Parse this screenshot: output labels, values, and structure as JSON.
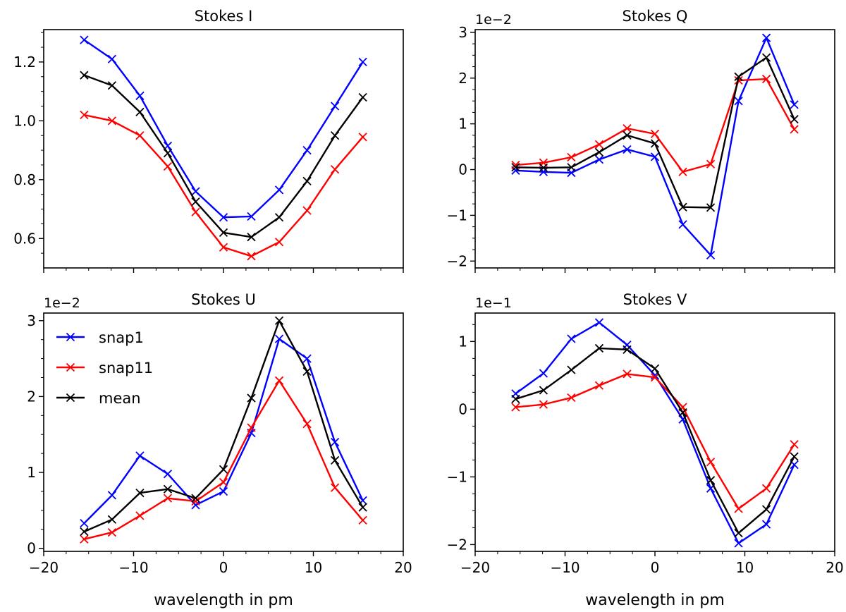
{
  "xlabel": "wavelength in pm",
  "colors": {
    "snap1": "#0000ff",
    "snap11": "#ff0000",
    "mean": "#000000"
  },
  "chart_data": [
    {
      "type": "line",
      "title": "Stokes I",
      "offset_label": "",
      "xlabel": "",
      "xlim": [
        -20,
        20
      ],
      "ylim": [
        0.5,
        1.31
      ],
      "xticks": [
        -20,
        -10,
        0,
        10,
        20
      ],
      "show_xticklabels": false,
      "yticks": [
        0.6,
        0.8,
        1.0,
        1.2
      ],
      "ytick_labels": [
        "0.6",
        "0.8",
        "1.0",
        "1.2"
      ],
      "grid": false,
      "x": [
        -15.5,
        -12.4,
        -9.3,
        -6.2,
        -3.1,
        0,
        3.1,
        6.2,
        9.3,
        12.4,
        15.5
      ],
      "series": [
        {
          "name": "snap1",
          "color": "#0000ff",
          "values": [
            1.275,
            1.21,
            1.085,
            0.915,
            0.76,
            0.672,
            0.675,
            0.765,
            0.9,
            1.05,
            1.2
          ]
        },
        {
          "name": "snap11",
          "color": "#ff0000",
          "values": [
            1.02,
            1.0,
            0.95,
            0.845,
            0.69,
            0.57,
            0.54,
            0.588,
            0.695,
            0.835,
            0.945
          ]
        },
        {
          "name": "mean",
          "color": "#000000",
          "values": [
            1.155,
            1.12,
            1.03,
            0.89,
            0.725,
            0.62,
            0.605,
            0.672,
            0.795,
            0.95,
            1.08
          ]
        }
      ]
    },
    {
      "type": "line",
      "title": "Stokes Q",
      "offset_label": "1e−2",
      "xlabel": "",
      "xlim": [
        -20,
        20
      ],
      "ylim": [
        -2.15,
        3.06
      ],
      "xticks": [
        -20,
        -10,
        0,
        10,
        20
      ],
      "show_xticklabels": false,
      "yticks": [
        -2,
        -1,
        0,
        1,
        2,
        3
      ],
      "ytick_labels": [
        "−2",
        "−1",
        "0",
        "1",
        "2",
        "3"
      ],
      "grid": false,
      "x": [
        -15.5,
        -12.4,
        -9.3,
        -6.2,
        -3.1,
        0,
        3.1,
        6.2,
        9.3,
        12.4,
        15.5
      ],
      "series": [
        {
          "name": "snap1",
          "color": "#0000ff",
          "values": [
            -0.02,
            -0.05,
            -0.07,
            0.22,
            0.44,
            0.28,
            -1.2,
            -1.87,
            1.5,
            2.88,
            1.42
          ]
        },
        {
          "name": "snap11",
          "color": "#ff0000",
          "values": [
            0.1,
            0.15,
            0.27,
            0.55,
            0.9,
            0.78,
            -0.05,
            0.12,
            1.95,
            1.98,
            0.88
          ]
        },
        {
          "name": "mean",
          "color": "#000000",
          "values": [
            0.05,
            0.04,
            0.05,
            0.38,
            0.75,
            0.57,
            -0.82,
            -0.83,
            2.03,
            2.45,
            1.1
          ]
        }
      ]
    },
    {
      "type": "line",
      "title": "Stokes U",
      "offset_label": "1e−2",
      "xlabel": "wavelength in pm",
      "xlim": [
        -20,
        20
      ],
      "ylim": [
        -0.04,
        3.1
      ],
      "xticks": [
        -20,
        -10,
        0,
        10,
        20
      ],
      "show_xticklabels": true,
      "xtick_labels": [
        "−20",
        "−10",
        "0",
        "10",
        "20"
      ],
      "yticks": [
        0,
        1,
        2,
        3
      ],
      "ytick_labels": [
        "0",
        "1",
        "2",
        "3"
      ],
      "grid": false,
      "legend": {
        "placement": "upper-left",
        "entries": [
          "snap1",
          "snap11",
          "mean"
        ]
      },
      "x": [
        -15.5,
        -12.4,
        -9.3,
        -6.2,
        -3.1,
        0,
        3.1,
        6.2,
        9.3,
        12.4,
        15.5
      ],
      "series": [
        {
          "name": "snap1",
          "color": "#0000ff",
          "values": [
            0.33,
            0.7,
            1.22,
            0.98,
            0.57,
            0.75,
            1.52,
            2.76,
            2.5,
            1.4,
            0.63
          ]
        },
        {
          "name": "snap11",
          "color": "#ff0000",
          "values": [
            0.12,
            0.21,
            0.43,
            0.66,
            0.62,
            0.87,
            1.59,
            2.21,
            1.64,
            0.8,
            0.37
          ]
        },
        {
          "name": "mean",
          "color": "#000000",
          "values": [
            0.22,
            0.38,
            0.73,
            0.78,
            0.66,
            1.04,
            1.98,
            3.0,
            2.33,
            1.16,
            0.54
          ]
        }
      ]
    },
    {
      "type": "line",
      "title": "Stokes V",
      "offset_label": "1e−1",
      "xlabel": "wavelength in pm",
      "xlim": [
        -20,
        20
      ],
      "ylim": [
        -2.1,
        1.42
      ],
      "xticks": [
        -20,
        -10,
        0,
        10,
        20
      ],
      "show_xticklabels": true,
      "xtick_labels": [
        "−20",
        "−10",
        "0",
        "10",
        "20"
      ],
      "yticks": [
        -2,
        -1,
        0,
        1
      ],
      "ytick_labels": [
        "−2",
        "−1",
        "0",
        "1"
      ],
      "grid": false,
      "x": [
        -15.5,
        -12.4,
        -9.3,
        -6.2,
        -3.1,
        0,
        3.1,
        6.2,
        9.3,
        12.4,
        15.5
      ],
      "series": [
        {
          "name": "snap1",
          "color": "#0000ff",
          "values": [
            0.23,
            0.53,
            1.04,
            1.28,
            0.95,
            0.5,
            -0.15,
            -1.17,
            -1.98,
            -1.7,
            -0.82
          ]
        },
        {
          "name": "snap11",
          "color": "#ff0000",
          "values": [
            0.03,
            0.07,
            0.17,
            0.35,
            0.52,
            0.47,
            0.03,
            -0.78,
            -1.47,
            -1.17,
            -0.52
          ]
        },
        {
          "name": "mean",
          "color": "#000000",
          "values": [
            0.15,
            0.28,
            0.58,
            0.9,
            0.88,
            0.6,
            -0.05,
            -1.05,
            -1.83,
            -1.48,
            -0.7
          ]
        }
      ]
    }
  ]
}
